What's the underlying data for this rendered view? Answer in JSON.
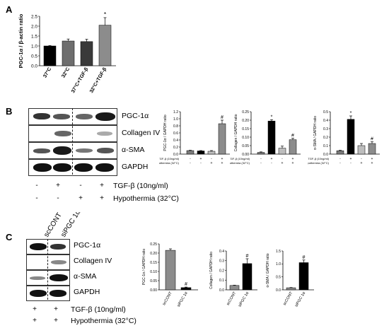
{
  "panels": {
    "A": {
      "letter": "A"
    },
    "B": {
      "letter": "B"
    },
    "C": {
      "letter": "C"
    }
  },
  "panelA": {
    "ylabel": "PGC-1α / β-actin ratio",
    "yticks": [
      "0.0",
      "0.5",
      "1.0",
      "1.5",
      "2.0",
      "2.5"
    ],
    "significance": "*"
  },
  "panelB": {
    "blot_labels": [
      "PGC-1α",
      "Collagen IV",
      "α-SMA",
      "GAPDH"
    ],
    "tgf_row": [
      "-",
      "+",
      "-",
      "+"
    ],
    "hypo_row": [
      "-",
      "-",
      "+",
      "+"
    ],
    "tgf_label": "TGF-β (10ng/ml)",
    "hypo_label": "Hypothermia (32°C)",
    "mini_tgf": "TGF-β (10ng/ml)",
    "mini_hypo": "Hypothermia (32°C)"
  },
  "panelC": {
    "lane_labels": [
      "scCONT",
      "siPGC 1α"
    ],
    "blot_labels": [
      "PGC-1α",
      "Collagen IV",
      "α-SMA",
      "GAPDH"
    ],
    "tgf_row": [
      "+",
      "+"
    ],
    "hypo_row": [
      "+",
      "+"
    ],
    "tgf_label": "TGF-β (10ng/ml)",
    "hypo_label": "Hypothermia (32°C)"
  },
  "chart_data": [
    {
      "id": "A",
      "type": "bar",
      "categories": [
        "37°C",
        "32°C",
        "37°C+TGF-β",
        "32°C+TGF-β"
      ],
      "values": [
        1.0,
        1.25,
        1.22,
        2.05
      ],
      "errors": [
        0.02,
        0.1,
        0.12,
        0.38
      ],
      "colors": [
        "#000000",
        "#6e6e6e",
        "#3a3a3a",
        "#8c8c8c"
      ],
      "ylabel": "PGC-1α / β-actin ratio",
      "ylim": [
        0,
        2.5
      ],
      "significance": [
        "",
        "",
        "",
        "*"
      ]
    },
    {
      "id": "B1",
      "type": "bar",
      "ylabel": "PGC-1α / GAPDH ratio",
      "yticks": [
        "0.0",
        "0.2",
        "0.4",
        "0.6",
        "0.8",
        "1.0",
        "1.2"
      ],
      "ylim": [
        0,
        1.2
      ],
      "values": [
        0.1,
        0.09,
        0.08,
        0.86
      ],
      "errors": [
        0.01,
        0.01,
        0.02,
        0.1
      ],
      "colors": [
        "#7a7a7a",
        "#000000",
        "#bdbdbd",
        "#8c8c8c"
      ],
      "significance": [
        "",
        "",
        "",
        "#"
      ]
    },
    {
      "id": "B2",
      "type": "bar",
      "ylabel": "Collagen / GAPDH ratio",
      "yticks": [
        "0.00",
        "0.05",
        "0.10",
        "0.15",
        "0.20",
        "0.25"
      ],
      "ylim": [
        0,
        0.25
      ],
      "values": [
        0.01,
        0.195,
        0.035,
        0.085
      ],
      "errors": [
        0.003,
        0.008,
        0.012,
        0.008
      ],
      "colors": [
        "#7a7a7a",
        "#000000",
        "#bdbdbd",
        "#8c8c8c"
      ],
      "significance": [
        "",
        "*",
        "",
        "#"
      ]
    },
    {
      "id": "B3",
      "type": "bar",
      "ylabel": "α-SMA / GAPDH ratio",
      "yticks": [
        "0.0",
        "0.1",
        "0.2",
        "0.3",
        "0.4",
        "0.5"
      ],
      "ylim": [
        0,
        0.5
      ],
      "values": [
        0.04,
        0.41,
        0.1,
        0.125
      ],
      "errors": [
        0.005,
        0.04,
        0.025,
        0.02
      ],
      "colors": [
        "#7a7a7a",
        "#000000",
        "#bdbdbd",
        "#8c8c8c"
      ],
      "significance": [
        "",
        "*",
        "",
        "#"
      ]
    },
    {
      "id": "C1",
      "type": "bar",
      "categories": [
        "scCONT",
        "siPGC 1α"
      ],
      "ylabel": "PGC-1α / GAPDH ratio",
      "yticks": [
        "0.00",
        "0.05",
        "0.10",
        "0.15",
        "0.20",
        "0.25"
      ],
      "ylim": [
        0,
        0.25
      ],
      "values": [
        0.215,
        0.012
      ],
      "errors": [
        0.008,
        0.003
      ],
      "colors": [
        "#8c8c8c",
        "#000000"
      ],
      "significance": [
        "",
        "#"
      ]
    },
    {
      "id": "C2",
      "type": "bar",
      "categories": [
        "scCONT",
        "siPGC 1α"
      ],
      "ylabel": "Collagen / GAPDH ratio",
      "yticks": [
        "0.0",
        "0.1",
        "0.2",
        "0.3",
        "0.4"
      ],
      "ylim": [
        0,
        0.4
      ],
      "values": [
        0.045,
        0.27
      ],
      "errors": [
        0.003,
        0.05
      ],
      "colors": [
        "#8c8c8c",
        "#000000"
      ],
      "significance": [
        "",
        "#"
      ]
    },
    {
      "id": "C3",
      "type": "bar",
      "categories": [
        "scCONT",
        "siPGC 1α"
      ],
      "ylabel": "α-SMA / GAPDH ratio",
      "yticks": [
        "0.0",
        "0.5",
        "1.0",
        "1.5"
      ],
      "ylim": [
        0,
        1.5
      ],
      "values": [
        0.08,
        1.05
      ],
      "errors": [
        0.01,
        0.1
      ],
      "colors": [
        "#8c8c8c",
        "#000000"
      ],
      "significance": [
        "",
        "#"
      ]
    }
  ]
}
